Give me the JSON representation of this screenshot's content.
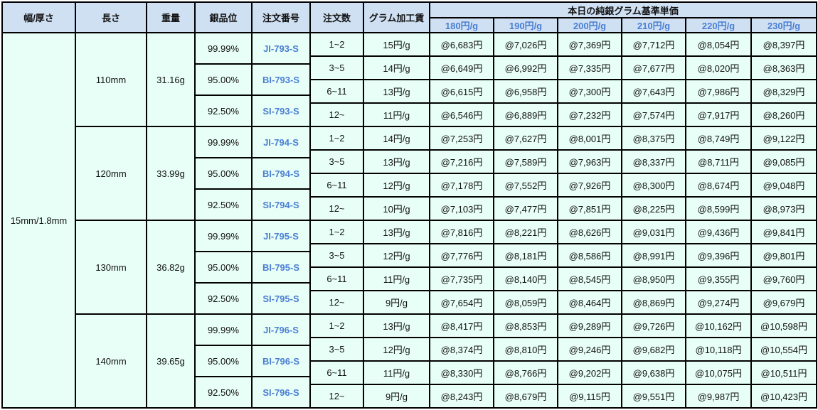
{
  "headers": {
    "width_thickness": "幅/厚さ",
    "length": "長さ",
    "weight": "重量",
    "purity": "銀品位",
    "order_no": "注文番号",
    "qty": "注文数",
    "fee": "グラム加工賃",
    "base_price_group": "本日の純銀グラム基準単価",
    "base_prices": [
      "180円/g",
      "190円/g",
      "200円/g",
      "210円/g",
      "220円/g",
      "230円/g"
    ]
  },
  "width_thickness": "15mm/1.8mm",
  "groups": [
    {
      "length": "110mm",
      "weight": "31.16g",
      "variants": [
        {
          "purity": "99.99%",
          "code": "JI-793-S"
        },
        {
          "purity": "95.00%",
          "code": "BI-793-S"
        },
        {
          "purity": "92.50%",
          "code": "SI-793-S"
        }
      ],
      "rows": [
        {
          "qty": "1~2",
          "fee": "15円/g",
          "prices": [
            "@6,683円",
            "@7,026円",
            "@7,369円",
            "@7,712円",
            "@8,054円",
            "@8,397円"
          ]
        },
        {
          "qty": "3~5",
          "fee": "14円/g",
          "prices": [
            "@6,649円",
            "@6,992円",
            "@7,335円",
            "@7,677円",
            "@8,020円",
            "@8,363円"
          ]
        },
        {
          "qty": "6~11",
          "fee": "13円/g",
          "prices": [
            "@6,615円",
            "@6,958円",
            "@7,300円",
            "@7,643円",
            "@7,986円",
            "@8,329円"
          ]
        },
        {
          "qty": "12~",
          "fee": "11円/g",
          "prices": [
            "@6,546円",
            "@6,889円",
            "@7,232円",
            "@7,574円",
            "@7,917円",
            "@8,260円"
          ]
        }
      ]
    },
    {
      "length": "120mm",
      "weight": "33.99g",
      "variants": [
        {
          "purity": "99.99%",
          "code": "JI-794-S"
        },
        {
          "purity": "95.00%",
          "code": "BI-794-S"
        },
        {
          "purity": "92.50%",
          "code": "SI-794-S"
        }
      ],
      "rows": [
        {
          "qty": "1~2",
          "fee": "14円/g",
          "prices": [
            "@7,253円",
            "@7,627円",
            "@8,001円",
            "@8,375円",
            "@8,749円",
            "@9,122円"
          ]
        },
        {
          "qty": "3~5",
          "fee": "13円/g",
          "prices": [
            "@7,216円",
            "@7,589円",
            "@7,963円",
            "@8,337円",
            "@8,711円",
            "@9,085円"
          ]
        },
        {
          "qty": "6~11",
          "fee": "12円/g",
          "prices": [
            "@7,178円",
            "@7,552円",
            "@7,926円",
            "@8,300円",
            "@8,674円",
            "@9,048円"
          ]
        },
        {
          "qty": "12~",
          "fee": "10円/g",
          "prices": [
            "@7,103円",
            "@7,477円",
            "@7,851円",
            "@8,225円",
            "@8,599円",
            "@8,973円"
          ]
        }
      ]
    },
    {
      "length": "130mm",
      "weight": "36.82g",
      "variants": [
        {
          "purity": "99.99%",
          "code": "JI-795-S"
        },
        {
          "purity": "95.00%",
          "code": "BI-795-S"
        },
        {
          "purity": "92.50%",
          "code": "SI-795-S"
        }
      ],
      "rows": [
        {
          "qty": "1~2",
          "fee": "13円/g",
          "prices": [
            "@7,816円",
            "@8,221円",
            "@8,626円",
            "@9,031円",
            "@9,436円",
            "@9,841円"
          ]
        },
        {
          "qty": "3~5",
          "fee": "12円/g",
          "prices": [
            "@7,776円",
            "@8,181円",
            "@8,586円",
            "@8,991円",
            "@9,396円",
            "@9,801円"
          ]
        },
        {
          "qty": "6~11",
          "fee": "11円/g",
          "prices": [
            "@7,735円",
            "@8,140円",
            "@8,545円",
            "@8,950円",
            "@9,355円",
            "@9,760円"
          ]
        },
        {
          "qty": "12~",
          "fee": "9円/g",
          "prices": [
            "@7,654円",
            "@8,059円",
            "@8,464円",
            "@8,869円",
            "@9,274円",
            "@9,679円"
          ]
        }
      ]
    },
    {
      "length": "140mm",
      "weight": "39.65g",
      "variants": [
        {
          "purity": "99.99%",
          "code": "JI-796-S"
        },
        {
          "purity": "95.00%",
          "code": "BI-796-S"
        },
        {
          "purity": "92.50%",
          "code": "SI-796-S"
        }
      ],
      "rows": [
        {
          "qty": "1~2",
          "fee": "13円/g",
          "prices": [
            "@8,417円",
            "@8,853円",
            "@9,289円",
            "@9,726円",
            "@10,162円",
            "@10,598円"
          ]
        },
        {
          "qty": "3~5",
          "fee": "12円/g",
          "prices": [
            "@8,374円",
            "@8,810円",
            "@9,246円",
            "@9,682円",
            "@10,118円",
            "@10,554円"
          ]
        },
        {
          "qty": "6~11",
          "fee": "11円/g",
          "prices": [
            "@8,330円",
            "@8,766円",
            "@9,202円",
            "@9,638円",
            "@10,075円",
            "@10,511円"
          ]
        },
        {
          "qty": "12~",
          "fee": "9円/g",
          "prices": [
            "@8,243円",
            "@8,679円",
            "@9,115円",
            "@9,551円",
            "@9,987円",
            "@10,423円"
          ]
        }
      ]
    }
  ],
  "colors": {
    "header_bg": "#cfe0f3",
    "body_bg": "#e8fff7",
    "accent_text": "#4a7fd4",
    "border": "#000000"
  }
}
